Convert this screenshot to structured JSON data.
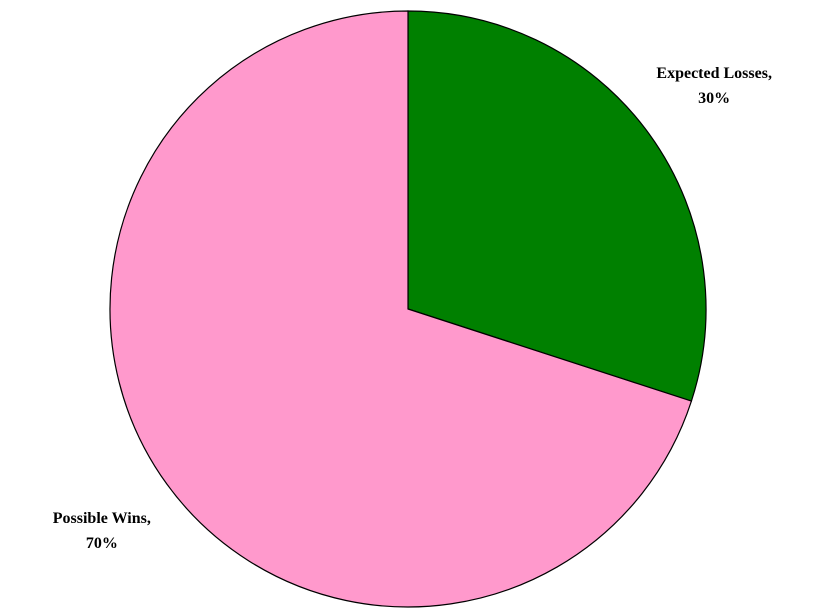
{
  "chart_data": {
    "type": "pie",
    "categories": [
      "Expected Losses,",
      "Possible Wins,"
    ],
    "values": [
      30,
      70
    ],
    "value_labels": [
      "30%",
      "70%"
    ],
    "colors": [
      "#008000",
      "#ff99cc"
    ]
  }
}
